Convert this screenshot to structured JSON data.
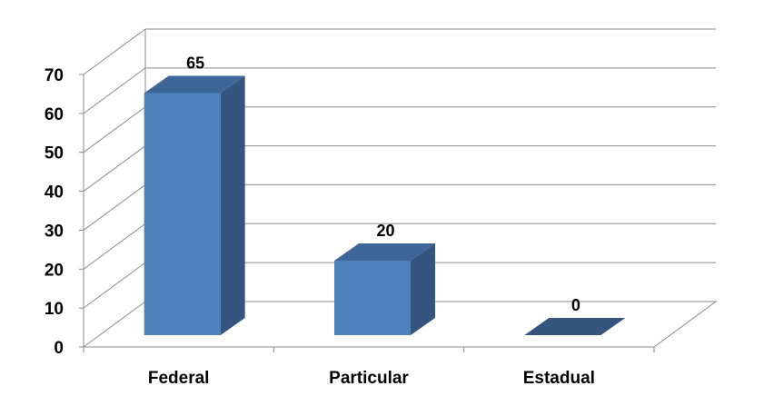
{
  "chart_data": {
    "type": "bar",
    "categories": [
      "Federal",
      "Particular",
      "Estadual"
    ],
    "values": [
      65,
      20,
      0
    ],
    "data_labels": [
      "65",
      "20",
      "0"
    ],
    "ylim": [
      0,
      70
    ],
    "yticks": [
      "0",
      "10",
      "20",
      "30",
      "40",
      "50",
      "60",
      "70"
    ],
    "grid": true,
    "legend": "none",
    "colors": {
      "bar_front": "#4f81bd",
      "bar_side": "#35557f",
      "bar_top": "#3f6699",
      "grid": "#8c8c8c"
    }
  }
}
